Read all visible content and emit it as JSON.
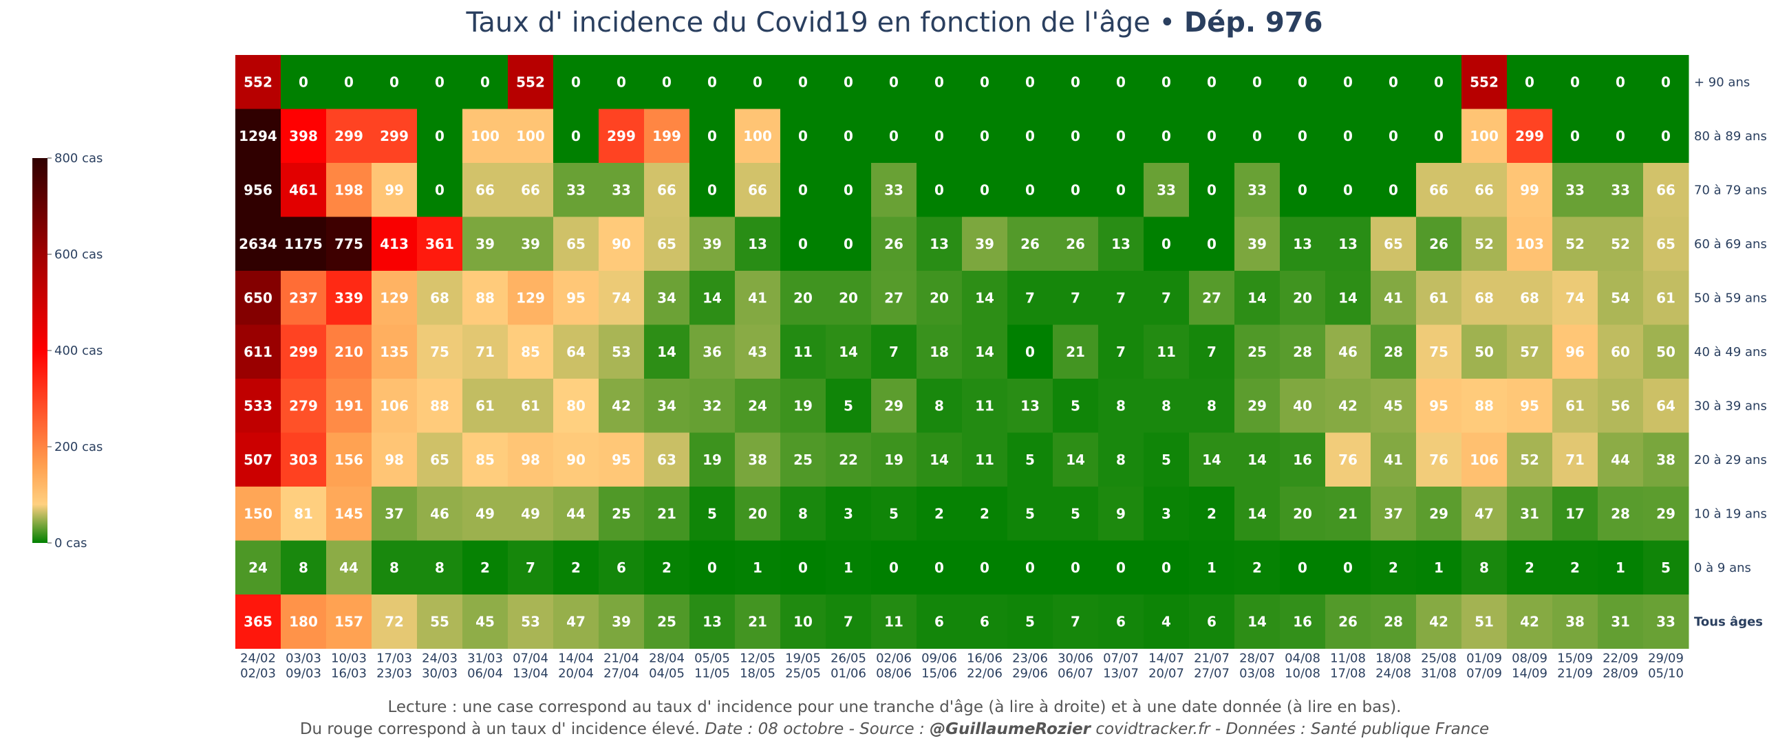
{
  "title": {
    "main": "Taux d' incidence du Covid19 en fonction de l'âge • ",
    "dep": "Dép. 976"
  },
  "footer": {
    "line1": "Lecture : une case correspond au taux d' incidence pour une tranche d'âge (à lire à droite) et à une date donnée (à lire en bas).",
    "line2_start": "Du rouge correspond à un taux d' incidence élevé.  ",
    "line2_date": "Date : 08 octobre - Source : ",
    "line2_author": "@GuillaumeRozier",
    "line2_end": " covidtracker.fr - Données : Santé publique France"
  },
  "colors": {
    "scale": [
      "#008000",
      "#ffd080",
      "#ffa050",
      "#ff0000",
      "#a00000",
      "#300000"
    ],
    "axis_text": "#2a3f5f",
    "cell_text": "#ffffff"
  },
  "chart_data": {
    "type": "heatmap",
    "zmin": 0,
    "zmax": 800,
    "colorbar": {
      "ticks": [
        0,
        200,
        400,
        600,
        800
      ],
      "labels": [
        "0 cas",
        "200 cas",
        "400 cas",
        "600 cas",
        "800 cas"
      ]
    },
    "x_labels": [
      [
        "24/02",
        "02/03"
      ],
      [
        "03/03",
        "09/03"
      ],
      [
        "10/03",
        "16/03"
      ],
      [
        "17/03",
        "23/03"
      ],
      [
        "24/03",
        "30/03"
      ],
      [
        "31/03",
        "06/04"
      ],
      [
        "07/04",
        "13/04"
      ],
      [
        "14/04",
        "20/04"
      ],
      [
        "21/04",
        "27/04"
      ],
      [
        "28/04",
        "04/05"
      ],
      [
        "05/05",
        "11/05"
      ],
      [
        "12/05",
        "18/05"
      ],
      [
        "19/05",
        "25/05"
      ],
      [
        "26/05",
        "01/06"
      ],
      [
        "02/06",
        "08/06"
      ],
      [
        "09/06",
        "15/06"
      ],
      [
        "16/06",
        "22/06"
      ],
      [
        "23/06",
        "29/06"
      ],
      [
        "30/06",
        "06/07"
      ],
      [
        "07/07",
        "13/07"
      ],
      [
        "14/07",
        "20/07"
      ],
      [
        "21/07",
        "27/07"
      ],
      [
        "28/07",
        "03/08"
      ],
      [
        "04/08",
        "10/08"
      ],
      [
        "11/08",
        "17/08"
      ],
      [
        "18/08",
        "24/08"
      ],
      [
        "25/08",
        "31/08"
      ],
      [
        "01/09",
        "07/09"
      ],
      [
        "08/09",
        "14/09"
      ],
      [
        "15/09",
        "21/09"
      ],
      [
        "22/09",
        "28/09"
      ],
      [
        "29/09",
        "05/10"
      ]
    ],
    "rows": [
      {
        "label": "+ 90 ans",
        "bold": false,
        "values": [
          552,
          0,
          0,
          0,
          0,
          0,
          552,
          0,
          0,
          0,
          0,
          0,
          0,
          0,
          0,
          0,
          0,
          0,
          0,
          0,
          0,
          0,
          0,
          0,
          0,
          0,
          0,
          552,
          0,
          0,
          0,
          0
        ]
      },
      {
        "label": "80 à 89 ans",
        "bold": false,
        "values": [
          1294,
          398,
          299,
          299,
          0,
          100,
          100,
          0,
          299,
          199,
          0,
          100,
          0,
          0,
          0,
          0,
          0,
          0,
          0,
          0,
          0,
          0,
          0,
          0,
          0,
          0,
          0,
          100,
          299,
          0,
          0,
          0
        ]
      },
      {
        "label": "70 à 79 ans",
        "bold": false,
        "values": [
          956,
          461,
          198,
          99,
          0,
          66,
          66,
          33,
          33,
          66,
          0,
          66,
          0,
          0,
          33,
          0,
          0,
          0,
          0,
          0,
          33,
          0,
          33,
          0,
          0,
          0,
          66,
          66,
          99,
          33,
          33,
          66
        ]
      },
      {
        "label": "60 à 69 ans",
        "bold": false,
        "values": [
          2634,
          1175,
          775,
          413,
          361,
          39,
          39,
          65,
          90,
          65,
          39,
          13,
          0,
          0,
          26,
          13,
          39,
          26,
          26,
          13,
          0,
          0,
          39,
          13,
          13,
          65,
          26,
          52,
          103,
          52,
          52,
          65
        ]
      },
      {
        "label": "50 à 59 ans",
        "bold": false,
        "values": [
          650,
          237,
          339,
          129,
          68,
          88,
          129,
          95,
          74,
          34,
          14,
          41,
          20,
          20,
          27,
          20,
          14,
          7,
          7,
          7,
          7,
          27,
          14,
          20,
          14,
          41,
          61,
          68,
          68,
          74,
          54,
          61
        ]
      },
      {
        "label": "40 à 49 ans",
        "bold": false,
        "values": [
          611,
          299,
          210,
          135,
          75,
          71,
          85,
          64,
          53,
          14,
          36,
          43,
          11,
          14,
          7,
          18,
          14,
          0,
          21,
          7,
          11,
          7,
          25,
          28,
          46,
          28,
          75,
          50,
          57,
          96,
          60,
          50
        ]
      },
      {
        "label": "30 à 39 ans",
        "bold": false,
        "values": [
          533,
          279,
          191,
          106,
          88,
          61,
          61,
          80,
          42,
          34,
          32,
          24,
          19,
          5,
          29,
          8,
          11,
          13,
          5,
          8,
          8,
          8,
          29,
          40,
          42,
          45,
          95,
          88,
          95,
          61,
          56,
          64
        ]
      },
      {
        "label": "20 à 29 ans",
        "bold": false,
        "values": [
          507,
          303,
          156,
          98,
          65,
          85,
          98,
          90,
          95,
          63,
          19,
          38,
          25,
          22,
          19,
          14,
          11,
          5,
          14,
          8,
          5,
          14,
          14,
          16,
          76,
          41,
          76,
          106,
          52,
          71,
          44,
          38
        ]
      },
      {
        "label": "10 à 19 ans",
        "bold": false,
        "values": [
          150,
          81,
          145,
          37,
          46,
          49,
          49,
          44,
          25,
          21,
          5,
          20,
          8,
          3,
          5,
          2,
          2,
          5,
          5,
          9,
          3,
          2,
          14,
          20,
          21,
          37,
          29,
          47,
          31,
          17,
          28,
          29
        ]
      },
      {
        "label": "0 à 9 ans",
        "bold": false,
        "values": [
          24,
          8,
          44,
          8,
          8,
          2,
          7,
          2,
          6,
          2,
          0,
          1,
          0,
          1,
          0,
          0,
          0,
          0,
          0,
          0,
          0,
          1,
          2,
          0,
          0,
          2,
          1,
          8,
          2,
          2,
          1,
          5
        ]
      },
      {
        "label": "Tous âges",
        "bold": true,
        "values": [
          365,
          180,
          157,
          72,
          55,
          45,
          53,
          47,
          39,
          25,
          13,
          21,
          10,
          7,
          11,
          6,
          6,
          5,
          7,
          6,
          4,
          6,
          14,
          16,
          26,
          28,
          42,
          51,
          42,
          38,
          31,
          33
        ]
      }
    ]
  }
}
